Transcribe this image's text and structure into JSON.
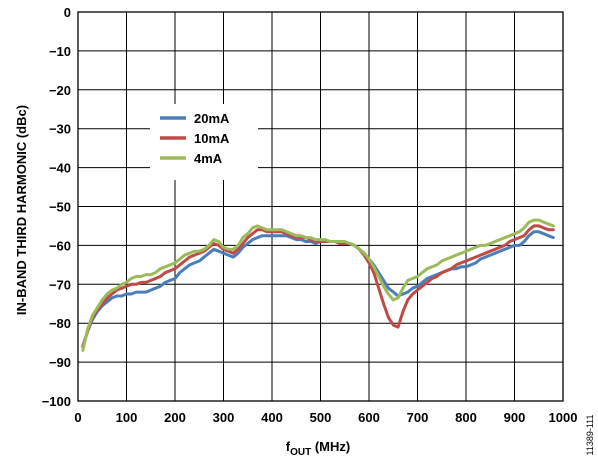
{
  "chart_data": {
    "type": "line",
    "title": "",
    "xlabel_main": "f",
    "xlabel_sub": "OUT",
    "xlabel_unit": " (MHz)",
    "ylabel": "IN-BAND THIRD HARMONIC (dBc)",
    "xlim": [
      0,
      1000
    ],
    "ylim": [
      -100,
      0
    ],
    "grid": true,
    "x_ticks": [
      "0",
      "100",
      "200",
      "300",
      "400",
      "500",
      "600",
      "700",
      "800",
      "900",
      "1000"
    ],
    "y_ticks": [
      "0",
      "−10",
      "−20",
      "−30",
      "−40",
      "−50",
      "−60",
      "−70",
      "−80",
      "−90",
      "−100"
    ],
    "legend_placement": "upper-left",
    "figure_id": "11389-111",
    "series": [
      {
        "name": "20mA",
        "color": "#4a7ebb",
        "x": [
          10,
          20,
          30,
          40,
          50,
          60,
          70,
          80,
          90,
          100,
          110,
          120,
          130,
          140,
          150,
          160,
          170,
          180,
          190,
          200,
          210,
          220,
          230,
          240,
          250,
          260,
          270,
          280,
          290,
          300,
          310,
          320,
          330,
          340,
          350,
          360,
          370,
          380,
          390,
          400,
          410,
          420,
          430,
          440,
          450,
          460,
          470,
          480,
          490,
          500,
          510,
          520,
          530,
          540,
          550,
          560,
          570,
          580,
          590,
          600,
          610,
          620,
          630,
          640,
          650,
          660,
          670,
          680,
          690,
          700,
          710,
          720,
          730,
          740,
          750,
          760,
          770,
          780,
          790,
          800,
          810,
          820,
          830,
          840,
          850,
          860,
          870,
          880,
          890,
          900,
          910,
          920,
          930,
          940,
          950,
          960,
          970,
          980
        ],
        "values": [
          -86,
          -82,
          -79,
          -77,
          -75.5,
          -74.5,
          -73.5,
          -73,
          -73,
          -72.5,
          -72.5,
          -72,
          -72,
          -72,
          -71.5,
          -71,
          -70.5,
          -69.5,
          -69,
          -68.5,
          -67,
          -66,
          -65,
          -64.5,
          -64,
          -63,
          -62,
          -61,
          -61.5,
          -62,
          -62.5,
          -63,
          -62,
          -60.5,
          -59.5,
          -58.5,
          -58,
          -57.5,
          -57.5,
          -57.5,
          -57.5,
          -57.5,
          -57.5,
          -58,
          -58.5,
          -58.5,
          -59,
          -59,
          -59.5,
          -59,
          -59,
          -59,
          -59,
          -59.5,
          -59.5,
          -59.5,
          -60,
          -61,
          -62,
          -63.5,
          -65,
          -67,
          -69,
          -71,
          -72,
          -73,
          -72.5,
          -72,
          -71,
          -70.5,
          -69.5,
          -68.5,
          -68,
          -67.5,
          -67,
          -66.5,
          -66,
          -66,
          -65.5,
          -65.5,
          -65,
          -64.5,
          -63.5,
          -63,
          -62.5,
          -62,
          -61.5,
          -61,
          -60.5,
          -60,
          -60,
          -59,
          -57.5,
          -56.5,
          -56.5,
          -57,
          -57.5,
          -58
        ]
      },
      {
        "name": "10mA",
        "color": "#be4b48",
        "x": [
          10,
          20,
          30,
          40,
          50,
          60,
          70,
          80,
          90,
          100,
          110,
          120,
          130,
          140,
          150,
          160,
          170,
          180,
          190,
          200,
          210,
          220,
          230,
          240,
          250,
          260,
          270,
          280,
          290,
          300,
          310,
          320,
          330,
          340,
          350,
          360,
          370,
          380,
          390,
          400,
          410,
          420,
          430,
          440,
          450,
          460,
          470,
          480,
          490,
          500,
          510,
          520,
          530,
          540,
          550,
          560,
          570,
          580,
          590,
          600,
          610,
          620,
          630,
          640,
          650,
          660,
          670,
          680,
          690,
          700,
          710,
          720,
          730,
          740,
          750,
          760,
          770,
          780,
          790,
          800,
          810,
          820,
          830,
          840,
          850,
          860,
          870,
          880,
          890,
          900,
          910,
          920,
          930,
          940,
          950,
          960,
          970,
          980
        ],
        "values": [
          -86,
          -82,
          -78.5,
          -76.5,
          -75,
          -73.5,
          -72.5,
          -71.5,
          -71,
          -70.5,
          -70,
          -70,
          -69.5,
          -69.5,
          -69,
          -68.5,
          -68,
          -67,
          -66.5,
          -66,
          -65,
          -64,
          -63,
          -62.5,
          -62,
          -61.5,
          -60.5,
          -59.5,
          -60,
          -61,
          -61.5,
          -62,
          -61,
          -59.5,
          -58,
          -57,
          -56,
          -56,
          -56.5,
          -56.5,
          -56.5,
          -56.5,
          -57,
          -57.5,
          -58,
          -58,
          -58,
          -58.5,
          -59,
          -59,
          -59,
          -59,
          -59,
          -59.5,
          -59.5,
          -59.5,
          -60,
          -61,
          -62.5,
          -64.5,
          -67,
          -71,
          -75,
          -78.5,
          -80.5,
          -81,
          -77,
          -74,
          -72.5,
          -71.5,
          -70.5,
          -69.5,
          -68.5,
          -68,
          -67,
          -66.5,
          -66,
          -65,
          -64.5,
          -64,
          -63.5,
          -63,
          -62.5,
          -62,
          -61.5,
          -61,
          -60.5,
          -60,
          -59,
          -58.5,
          -58,
          -57.5,
          -56,
          -55,
          -55,
          -55.5,
          -56,
          -56
        ]
      },
      {
        "name": "4mA",
        "color": "#9bbb59",
        "x": [
          10,
          20,
          30,
          40,
          50,
          60,
          70,
          80,
          90,
          100,
          110,
          120,
          130,
          140,
          150,
          160,
          170,
          180,
          190,
          200,
          210,
          220,
          230,
          240,
          250,
          260,
          270,
          280,
          290,
          300,
          310,
          320,
          330,
          340,
          350,
          360,
          370,
          380,
          390,
          400,
          410,
          420,
          430,
          440,
          450,
          460,
          470,
          480,
          490,
          500,
          510,
          520,
          530,
          540,
          550,
          560,
          570,
          580,
          590,
          600,
          610,
          620,
          630,
          640,
          650,
          660,
          670,
          680,
          690,
          700,
          710,
          720,
          730,
          740,
          750,
          760,
          770,
          780,
          790,
          800,
          810,
          820,
          830,
          840,
          850,
          860,
          870,
          880,
          890,
          900,
          910,
          920,
          930,
          940,
          950,
          960,
          970,
          980
        ],
        "values": [
          -87,
          -81.5,
          -78,
          -76,
          -74,
          -72.5,
          -71.5,
          -71,
          -70,
          -69.5,
          -68.5,
          -68,
          -68,
          -67.5,
          -67.5,
          -67,
          -66,
          -65.5,
          -65,
          -64.5,
          -63.5,
          -62.5,
          -62,
          -61.5,
          -61.5,
          -61,
          -60,
          -58.5,
          -59,
          -60.5,
          -61,
          -61,
          -60,
          -58,
          -57,
          -55.5,
          -55,
          -55.5,
          -56,
          -56,
          -56,
          -56,
          -56.5,
          -57,
          -57.5,
          -57.5,
          -58,
          -58,
          -58.5,
          -58.5,
          -58.5,
          -59,
          -59,
          -59,
          -59,
          -59.5,
          -60,
          -61,
          -62,
          -63.5,
          -65.5,
          -68,
          -70.5,
          -72.5,
          -74,
          -73.5,
          -71,
          -69,
          -68.5,
          -68,
          -67,
          -66,
          -65.5,
          -65,
          -64,
          -63.5,
          -63,
          -62.5,
          -62,
          -61.5,
          -61,
          -60.5,
          -60,
          -60,
          -59.5,
          -59,
          -58.5,
          -58,
          -57.5,
          -57,
          -56.5,
          -55.5,
          -54,
          -53.5,
          -53.5,
          -54,
          -54.5,
          -55
        ]
      }
    ]
  }
}
